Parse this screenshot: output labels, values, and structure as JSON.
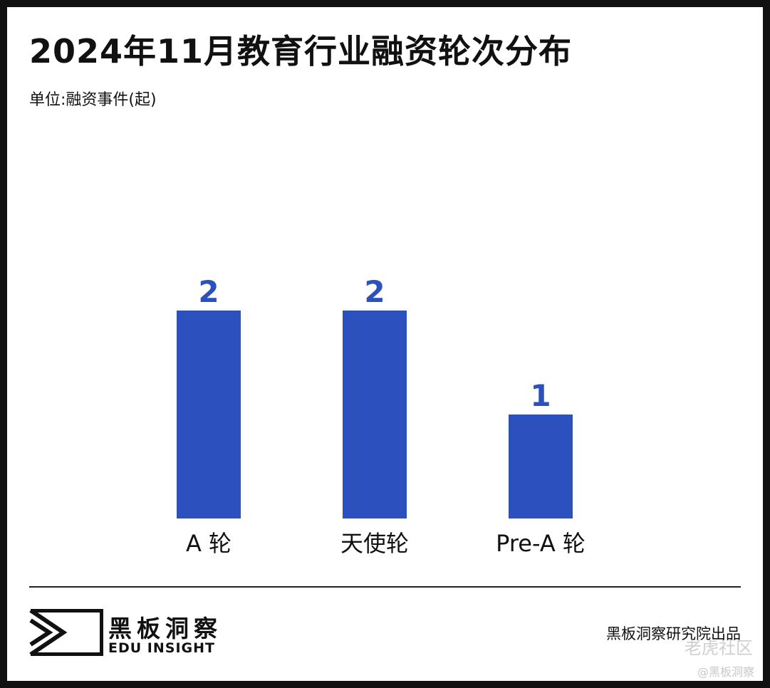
{
  "header": {
    "title": "2024年11月教育行业融资轮次分布",
    "unit": "单位:融资事件(起)"
  },
  "colors": {
    "bar": "#2c51be",
    "value_label": "#2c51be",
    "text": "#111111"
  },
  "chart_data": {
    "type": "bar",
    "title": "2024年11月教育行业融资轮次分布",
    "subtitle": "单位:融资事件(起)",
    "categories": [
      "A 轮",
      "天使轮",
      "Pre-A 轮"
    ],
    "values": [
      2,
      2,
      1
    ],
    "ylim": [
      0,
      2.5
    ],
    "grid": false,
    "data_labels": true
  },
  "footer": {
    "brand_cn": "黑板洞察",
    "brand_en": "EDU INSIGHT",
    "credit": "黑板洞察研究院出品",
    "watermark_primary": "老虎社区",
    "watermark_secondary": "@黑板洞察",
    "logo_icon": "eye-frame-icon"
  }
}
